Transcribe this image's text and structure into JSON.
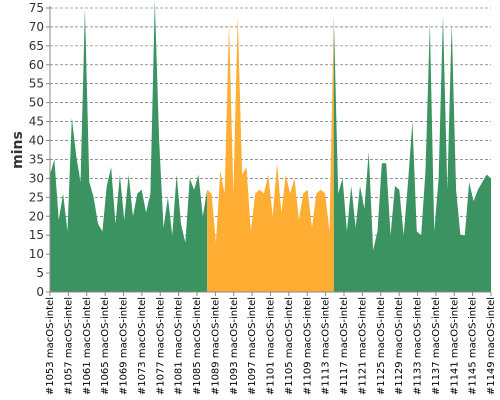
{
  "chart_data": {
    "type": "area",
    "ylabel": "mins",
    "xlabel": "",
    "ylim": [
      0,
      75
    ],
    "yticks": [
      0,
      5,
      10,
      15,
      20,
      25,
      30,
      35,
      40,
      45,
      50,
      55,
      60,
      65,
      70,
      75
    ],
    "grid": true,
    "x_labels": [
      "#1053 macOS-intel",
      "#1057 macOS-intel",
      "#1061 macOS-intel",
      "#1065 macOS-intel",
      "#1069 macOS-intel",
      "#1073 macOS-intel",
      "#1077 macOS-intel",
      "#1081 macOS-intel",
      "#1085 macOS-intel",
      "#1089 macOS-intel",
      "#1093 macOS-intel",
      "#1097 macOS-intel",
      "#1101 macOS-intel",
      "#1105 macOS-intel",
      "#1109 macOS-intel",
      "#1113 macOS-intel",
      "#1117 macOS-intel",
      "#1121 macOS-intel",
      "#1125 macOS-intel",
      "#1129 macOS-intel",
      "#1133 macOS-intel",
      "#1137 macOS-intel",
      "#1141 macOS-intel",
      "#1145 macOS-intel",
      "#1149 macOS-intel"
    ],
    "colors": {
      "green": "#3b9361",
      "orange": "#ffad33"
    },
    "highlight": {
      "color": "orange",
      "start": 36,
      "end": 65
    },
    "values": [
      31,
      35,
      19,
      26,
      16,
      46,
      36,
      29,
      75,
      29,
      25,
      18,
      16,
      28,
      33,
      18,
      31,
      19,
      31,
      20,
      26,
      27,
      21,
      26,
      77,
      40,
      17,
      25,
      15,
      31,
      18,
      13,
      30,
      27,
      31,
      20,
      27,
      26,
      13,
      32,
      26,
      71,
      26,
      73,
      31,
      33,
      16,
      26,
      27,
      26,
      31,
      20,
      34,
      21,
      31,
      26,
      30,
      19,
      26,
      27,
      17,
      26,
      27,
      26,
      16,
      73,
      26,
      30,
      16,
      28,
      17,
      28,
      22,
      37,
      11,
      16,
      34,
      34,
      15,
      28,
      27,
      15,
      29,
      45,
      16,
      15,
      32,
      71,
      16,
      30,
      73,
      27,
      71,
      27,
      15,
      15,
      29,
      24,
      27,
      29,
      31,
      30
    ]
  }
}
